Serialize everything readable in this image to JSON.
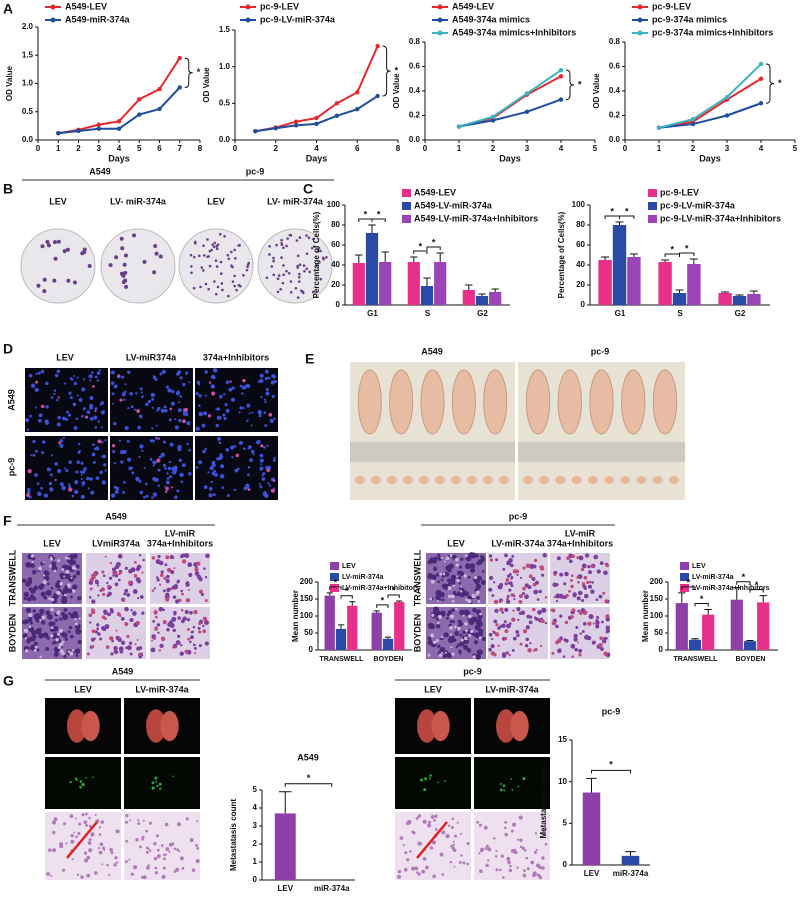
{
  "panel_labels": [
    "A",
    "B",
    "C",
    "D",
    "E",
    "F",
    "G"
  ],
  "panel_b": {
    "groups": [
      "A549",
      "pc-9"
    ],
    "conditions": [
      "LEV",
      "LV- miR-374a",
      "LEV",
      "LV- miR-374a"
    ]
  },
  "panel_d": {
    "columns": [
      "LEV",
      "LV-miR374a",
      "374a+Inhibitors"
    ],
    "rows": [
      "A549",
      "pc-9"
    ]
  },
  "panel_e": {
    "groups": [
      "A549",
      "pc-9"
    ]
  },
  "panel_f": {
    "a549": {
      "title": "A549",
      "columns": [
        "LEV",
        "LVmiR374a",
        [
          "LV-miR",
          "374a+Inhibitors"
        ]
      ]
    },
    "pc9": {
      "title": "pc-9",
      "columns": [
        "LEV",
        "LV-miR-374a",
        [
          "LV-miR",
          "374a+Inhibitors"
        ]
      ]
    },
    "rows": [
      "TRANSWELL",
      "BOYDEN"
    ]
  },
  "panel_g": {
    "a549": {
      "title": "A549",
      "columns": [
        "LEV",
        "LV-miR-374a"
      ]
    },
    "pc9": {
      "title": "pc-9",
      "columns": [
        "LEV",
        "LV-miR-374a"
      ]
    }
  },
  "chart_data": [
    {
      "type": "line",
      "x": [
        1,
        2,
        3,
        4,
        5,
        6,
        7
      ],
      "xlim": [
        0,
        8
      ],
      "xticks": [
        0,
        1,
        2,
        3,
        4,
        5,
        6,
        7,
        8
      ],
      "ylim": [
        0,
        2
      ],
      "yticks": [
        {
          "value": 0,
          "label": "0.0"
        },
        0.5,
        {
          "value": 1,
          "label": "1.0"
        },
        1.5,
        {
          "value": 2,
          "label": "2.0"
        }
      ],
      "xlabel": "Days",
      "ylabel": "OD Value",
      "annotation": "*",
      "series": [
        {
          "name": "A549-LEV",
          "color": "#e8262d",
          "values": [
            0.12,
            0.18,
            0.27,
            0.33,
            0.72,
            0.9,
            1.45
          ]
        },
        {
          "name": "A549-miR-374a",
          "color": "#1f4e9e",
          "values": [
            0.12,
            0.16,
            0.2,
            0.2,
            0.45,
            0.55,
            0.93
          ]
        }
      ]
    },
    {
      "type": "line",
      "x": [
        1,
        2,
        3,
        4,
        5,
        6,
        7
      ],
      "xlim": [
        0,
        8
      ],
      "xticks": [
        0,
        2,
        4,
        6,
        8
      ],
      "ylim": [
        0,
        1.5
      ],
      "yticks": [
        {
          "value": 0,
          "label": "0.0"
        },
        0.5,
        {
          "value": 1,
          "label": "1.0"
        },
        1.5
      ],
      "xlabel": "Days",
      "ylabel": "OD Value",
      "annotation": "*",
      "series": [
        {
          "name": "pc-9-LEV",
          "color": "#e8262d",
          "values": [
            0.12,
            0.17,
            0.25,
            0.3,
            0.5,
            0.65,
            1.28
          ]
        },
        {
          "name": "pc-9-LV-miR-374a",
          "color": "#1f4e9e",
          "values": [
            0.12,
            0.16,
            0.2,
            0.22,
            0.33,
            0.42,
            0.6
          ]
        }
      ]
    },
    {
      "type": "line",
      "x": [
        1,
        2,
        3,
        4
      ],
      "xlim": [
        0,
        5
      ],
      "xticks": [
        0,
        1,
        2,
        3,
        4,
        5
      ],
      "ylim": [
        0,
        0.8
      ],
      "yticks": [
        {
          "value": 0,
          "label": "0.0"
        },
        0.2,
        0.4,
        0.6,
        0.8
      ],
      "xlabel": "Days",
      "ylabel": "OD Value",
      "annotation": "*",
      "series": [
        {
          "name": "A549-LEV",
          "color": "#e8262d",
          "values": [
            0.11,
            0.18,
            0.37,
            0.52
          ]
        },
        {
          "name": "A549-374a mimics",
          "color": "#1f4e9e",
          "values": [
            0.11,
            0.16,
            0.23,
            0.33
          ]
        },
        {
          "name": "A549-374a mimics+Inhibitors",
          "color": "#3bb3c3",
          "values": [
            0.11,
            0.19,
            0.38,
            0.57
          ]
        }
      ]
    },
    {
      "type": "line",
      "x": [
        1,
        2,
        3,
        4
      ],
      "xlim": [
        0,
        5
      ],
      "xticks": [
        0,
        1,
        2,
        3,
        4,
        5
      ],
      "ylim": [
        0,
        0.8
      ],
      "yticks": [
        {
          "value": 0,
          "label": "0.0"
        },
        0.2,
        0.4,
        0.6,
        0.8
      ],
      "xlabel": "Days",
      "ylabel": "OD Value",
      "annotation": "*",
      "series": [
        {
          "name": "pc-9-LEV",
          "color": "#e8262d",
          "values": [
            0.1,
            0.15,
            0.33,
            0.5
          ]
        },
        {
          "name": "pc-9-374a mimics",
          "color": "#1f4e9e",
          "values": [
            0.1,
            0.13,
            0.2,
            0.3
          ]
        },
        {
          "name": "pc-9-374a mimics+Inhibitors",
          "color": "#3bb3c3",
          "values": [
            0.1,
            0.17,
            0.35,
            0.62
          ]
        }
      ]
    },
    {
      "type": "bar",
      "categories": [
        "G1",
        "S",
        "G2"
      ],
      "ylim": [
        0,
        100
      ],
      "yticks": [
        0,
        20,
        40,
        60,
        80,
        100
      ],
      "ylabel": "Percentage of Cells(%)",
      "annotation": "*",
      "series": [
        {
          "name": "A549-LEV",
          "color": "#e8308a",
          "values": [
            42,
            43,
            15
          ],
          "errors": [
            8,
            5,
            5
          ]
        },
        {
          "name": "A549-LV-miR-374a",
          "color": "#2a4aa8",
          "values": [
            72,
            19,
            9
          ],
          "errors": [
            8,
            8,
            2
          ]
        },
        {
          "name": "A549-LV-miR-374a+Inhibitors",
          "color": "#9b44b8",
          "values": [
            43,
            43,
            13
          ],
          "errors": [
            10,
            9,
            3
          ]
        }
      ]
    },
    {
      "type": "bar",
      "categories": [
        "G1",
        "S",
        "G2"
      ],
      "ylim": [
        0,
        100
      ],
      "yticks": [
        0,
        20,
        40,
        60,
        80,
        100
      ],
      "ylabel": "Percentage of Cells(%)",
      "annotation": "*",
      "series": [
        {
          "name": "pc-9-LEV",
          "color": "#e8308a",
          "values": [
            45,
            43,
            12
          ],
          "errors": [
            3,
            2,
            1
          ]
        },
        {
          "name": "pc-9-LV-miR-374a",
          "color": "#2a4aa8",
          "values": [
            80,
            12,
            9
          ],
          "errors": [
            3,
            3,
            1
          ]
        },
        {
          "name": "pc-9-LV-miR-374a+Inhibitors",
          "color": "#9b44b8",
          "values": [
            48,
            41,
            11
          ],
          "errors": [
            3,
            5,
            3
          ]
        }
      ]
    },
    {
      "type": "bar",
      "categories": [
        "TRANSWELL",
        "BOYDEN"
      ],
      "ylim": [
        0,
        200
      ],
      "yticks": [
        0,
        50,
        100,
        150,
        200
      ],
      "ylabel": "Mean number",
      "annotation": "*",
      "series": [
        {
          "name": "LEV",
          "color": "#8e3fa8",
          "values": [
            160,
            110
          ],
          "errors": [
            8,
            5
          ]
        },
        {
          "name": "LV-miR-374a",
          "color": "#2a4aa8",
          "values": [
            62,
            33
          ],
          "errors": [
            12,
            5
          ]
        },
        {
          "name": "LV-miR-374a+Inhibitors",
          "color": "#e8308a",
          "values": [
            130,
            141
          ],
          "errors": [
            12,
            3
          ]
        }
      ]
    },
    {
      "type": "bar",
      "categories": [
        "TRANSWELL",
        "BOYDEN"
      ],
      "ylim": [
        0,
        200
      ],
      "yticks": [
        0,
        50,
        100,
        150,
        200
      ],
      "ylabel": "Mean number",
      "annotation": "*",
      "series": [
        {
          "name": "LEV",
          "color": "#8e3fa8",
          "values": [
            138,
            148
          ],
          "errors": [
            30,
            35
          ]
        },
        {
          "name": "LV-miR-374a",
          "color": "#2a4aa8",
          "values": [
            30,
            26
          ],
          "errors": [
            3,
            2
          ]
        },
        {
          "name": "LV-miR-374a+Inhibitors",
          "color": "#e8308a",
          "values": [
            104,
            140
          ],
          "errors": [
            15,
            20
          ]
        }
      ]
    },
    {
      "type": "bar",
      "title": "A549",
      "categories": [
        "LEV",
        "miR-374a"
      ],
      "values": [
        3.7,
        0
      ],
      "errors": [
        1.2,
        0
      ],
      "colors": [
        "#8e3fa8",
        "#2a4aa8"
      ],
      "ylim": [
        0,
        5
      ],
      "yticks": [
        0,
        1,
        2,
        3,
        4,
        5
      ],
      "ylabel": "Metastatasis count",
      "annotation": "*"
    },
    {
      "type": "bar",
      "title": "pc-9",
      "categories": [
        "LEV",
        "miR-374a"
      ],
      "values": [
        8.7,
        1.1
      ],
      "errors": [
        1.7,
        0.5
      ],
      "colors": [
        "#8e3fa8",
        "#2a4aa8"
      ],
      "ylim": [
        0,
        15
      ],
      "yticks": [
        0,
        5,
        10,
        15
      ],
      "ylabel": "Metastatasis count",
      "annotation": "*"
    }
  ]
}
